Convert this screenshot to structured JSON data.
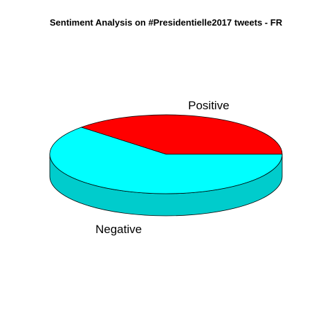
{
  "chart_data": {
    "type": "pie",
    "style": "3d",
    "title": "Sentiment Analysis on #Presidentielle2017 tweets - FR",
    "slices": [
      {
        "label": "Positive",
        "value": 38,
        "color": "#ff0000",
        "side_color": "#cc0000"
      },
      {
        "label": "Negative",
        "value": 62,
        "color": "#00ffff",
        "side_color": "#00cccc"
      }
    ]
  }
}
